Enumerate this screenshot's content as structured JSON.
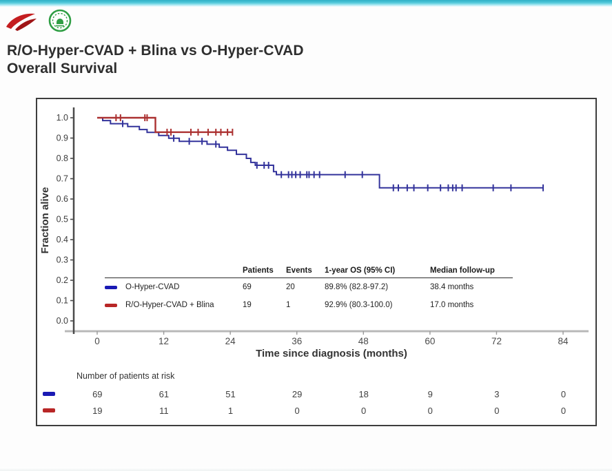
{
  "header": {
    "title_line1": "R/O-Hyper-CVAD + Blina vs O-Hyper-CVAD",
    "title_line2": "Overall Survival"
  },
  "branding": {
    "logo_left": "red-swoosh-logo",
    "logo_right": "green-circular-emblem-logo",
    "accent_bar_color": "#3fbfd2"
  },
  "chart_data": {
    "type": "line",
    "subtype": "kaplan-meier-step",
    "title": "",
    "xlabel": "Time since diagnosis (months)",
    "ylabel": "Fraction alive",
    "xlim": [
      0,
      84
    ],
    "ylim": [
      0.0,
      1.0
    ],
    "x_ticks": [
      "0",
      "12",
      "24",
      "36",
      "48",
      "60",
      "72",
      "84"
    ],
    "y_ticks": [
      "0.0",
      "0.1",
      "0.2",
      "0.3",
      "0.4",
      "0.5",
      "0.6",
      "0.7",
      "0.8",
      "0.9",
      "1.0"
    ],
    "grid": false,
    "legend_position": "inside-bottom-table",
    "series": [
      {
        "name": "O-Hyper-CVAD",
        "color": "#32329b",
        "line_width": 2,
        "steps": [
          [
            0,
            1.0
          ],
          [
            1.0,
            0.986
          ],
          [
            2.4,
            0.971
          ],
          [
            5.5,
            0.957
          ],
          [
            7.6,
            0.942
          ],
          [
            9.0,
            0.928
          ],
          [
            11.1,
            0.913
          ],
          [
            12.9,
            0.899
          ],
          [
            14.8,
            0.884
          ],
          [
            19.8,
            0.87
          ],
          [
            22.0,
            0.855
          ],
          [
            23.5,
            0.84
          ],
          [
            25.1,
            0.82
          ],
          [
            26.9,
            0.8
          ],
          [
            27.7,
            0.78
          ],
          [
            28.5,
            0.766
          ],
          [
            31.8,
            0.735
          ],
          [
            32.3,
            0.72
          ],
          [
            50.9,
            0.655
          ],
          [
            80.4,
            0.655
          ]
        ],
        "censors": [
          [
            4.6,
            0.971
          ],
          [
            13.8,
            0.899
          ],
          [
            16.6,
            0.884
          ],
          [
            18.9,
            0.884
          ],
          [
            21.4,
            0.87
          ],
          [
            28.8,
            0.766
          ],
          [
            30.1,
            0.766
          ],
          [
            30.9,
            0.766
          ],
          [
            33.2,
            0.72
          ],
          [
            34.5,
            0.72
          ],
          [
            35.1,
            0.72
          ],
          [
            35.8,
            0.72
          ],
          [
            36.6,
            0.72
          ],
          [
            37.8,
            0.72
          ],
          [
            38.2,
            0.72
          ],
          [
            39.1,
            0.72
          ],
          [
            40.1,
            0.72
          ],
          [
            44.7,
            0.72
          ],
          [
            47.8,
            0.72
          ],
          [
            53.4,
            0.655
          ],
          [
            54.3,
            0.655
          ],
          [
            55.9,
            0.655
          ],
          [
            57.1,
            0.655
          ],
          [
            59.6,
            0.655
          ],
          [
            61.9,
            0.655
          ],
          [
            63.3,
            0.655
          ],
          [
            64.1,
            0.655
          ],
          [
            64.7,
            0.655
          ],
          [
            65.8,
            0.655
          ],
          [
            71.4,
            0.655
          ],
          [
            74.6,
            0.655
          ],
          [
            80.4,
            0.655
          ]
        ]
      },
      {
        "name": "R/O-Hyper-CVAD + Blina",
        "color": "#ab3030",
        "line_width": 2.4,
        "steps": [
          [
            0,
            1.0
          ],
          [
            10.5,
            0.929
          ],
          [
            24.4,
            0.929
          ]
        ],
        "censors": [
          [
            3.4,
            1.0
          ],
          [
            4.2,
            1.0
          ],
          [
            8.6,
            1.0
          ],
          [
            9.0,
            1.0
          ],
          [
            12.6,
            0.929
          ],
          [
            13.3,
            0.929
          ],
          [
            16.9,
            0.929
          ],
          [
            18.2,
            0.929
          ],
          [
            20.0,
            0.929
          ],
          [
            21.4,
            0.929
          ],
          [
            22.3,
            0.929
          ],
          [
            23.5,
            0.929
          ],
          [
            24.4,
            0.929
          ]
        ]
      }
    ]
  },
  "legend_table": {
    "headers": [
      "Patients",
      "Events",
      "1-year OS (95% CI)",
      "Median follow-up"
    ],
    "rows": [
      {
        "name": "O-Hyper-CVAD",
        "color": "#1a1ab4",
        "patients": "69",
        "events": "20",
        "os": "89.8% (82.8-97.2)",
        "followup": "38.4 months"
      },
      {
        "name": "R/O-Hyper-CVAD + Blina",
        "color": "#b82626",
        "patients": "19",
        "events": "1",
        "os": "92.9% (80.3-100.0)",
        "followup": "17.0 months"
      }
    ]
  },
  "risk_table": {
    "title": "Number of patients at risk",
    "rows": [
      {
        "name": "O-Hyper-CVAD",
        "color": "#1a1ab4",
        "counts": [
          "69",
          "61",
          "51",
          "29",
          "18",
          "9",
          "3",
          "0"
        ]
      },
      {
        "name": "R/O-Hyper-CVAD + Blina",
        "color": "#b82626",
        "counts": [
          "19",
          "11",
          "1",
          "0",
          "0",
          "0",
          "0",
          "0"
        ]
      }
    ]
  }
}
